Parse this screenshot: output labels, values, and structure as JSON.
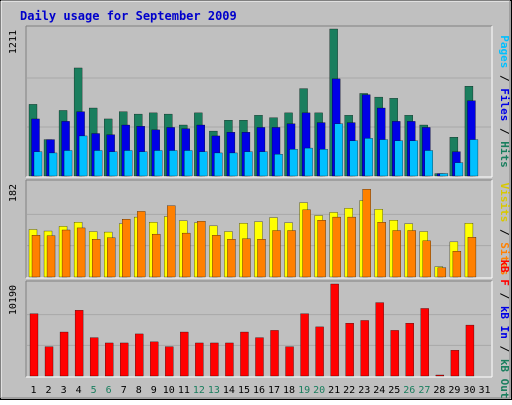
{
  "title": "Daily usage for September 2009",
  "colors": {
    "background": "#c0c0c0",
    "hits": "#1a7e5e",
    "files": "#0000e6",
    "pages": "#00c0ff",
    "visits": "#ffff00",
    "sites": "#ff8000",
    "kb_in": "#0000e6",
    "kb_out": "#1a7e5e",
    "kb_f": "#ff0000",
    "weekday_label": "#000000",
    "weekend_label": "#1a7e5e"
  },
  "side_labels": {
    "top": [
      {
        "text": "Pages",
        "color": "#00c0ff"
      },
      {
        "text": " / ",
        "color": "#000000"
      },
      {
        "text": "Files",
        "color": "#0000e6"
      },
      {
        "text": " / ",
        "color": "#000000"
      },
      {
        "text": "Hits",
        "color": "#1a7e5e"
      }
    ],
    "middle": [
      {
        "text": "Visits",
        "color": "#d8c800"
      },
      {
        "text": " / ",
        "color": "#000000"
      },
      {
        "text": "Sites",
        "color": "#ff8000"
      }
    ],
    "bottom": [
      {
        "text": "kB F",
        "color": "#ff0000"
      },
      {
        "text": " / ",
        "color": "#000000"
      },
      {
        "text": "kB In",
        "color": "#0000e6"
      },
      {
        "text": " / ",
        "color": "#000000"
      },
      {
        "text": "kB Out",
        "color": "#1a7e5e"
      }
    ]
  },
  "chart_data": [
    {
      "type": "bar",
      "panel": "top",
      "ymax_label": "1211",
      "ylim": [
        0,
        1211
      ],
      "categories": [
        "1",
        "2",
        "3",
        "4",
        "5",
        "6",
        "7",
        "8",
        "9",
        "10",
        "11",
        "12",
        "13",
        "14",
        "15",
        "16",
        "17",
        "18",
        "19",
        "20",
        "21",
        "22",
        "23",
        "24",
        "25",
        "26",
        "27",
        "28",
        "29",
        "30",
        "31"
      ],
      "weekend": [
        5,
        6,
        12,
        13,
        19,
        20,
        26,
        27
      ],
      "series": [
        {
          "name": "Hits",
          "color": "#1a7e5e",
          "values": [
            590,
            300,
            540,
            890,
            560,
            470,
            530,
            510,
            520,
            510,
            420,
            520,
            370,
            460,
            460,
            500,
            480,
            520,
            720,
            520,
            1211,
            500,
            680,
            650,
            640,
            500,
            420,
            20,
            320,
            740,
            0
          ]
        },
        {
          "name": "Files",
          "color": "#0000e6",
          "values": [
            470,
            300,
            450,
            530,
            350,
            340,
            420,
            410,
            380,
            400,
            390,
            420,
            330,
            360,
            360,
            400,
            400,
            430,
            520,
            440,
            800,
            440,
            670,
            560,
            450,
            450,
            400,
            20,
            200,
            620,
            0
          ]
        },
        {
          "name": "Pages",
          "color": "#00c0ff",
          "values": [
            200,
            190,
            210,
            330,
            210,
            200,
            210,
            200,
            210,
            210,
            210,
            200,
            190,
            190,
            200,
            200,
            180,
            220,
            230,
            220,
            430,
            290,
            310,
            300,
            290,
            290,
            210,
            20,
            110,
            300,
            0
          ]
        }
      ]
    },
    {
      "type": "bar",
      "panel": "middle",
      "ymax_label": "182",
      "ylim": [
        0,
        182
      ],
      "categories": [
        "1",
        "2",
        "3",
        "4",
        "5",
        "6",
        "7",
        "8",
        "9",
        "10",
        "11",
        "12",
        "13",
        "14",
        "15",
        "16",
        "17",
        "18",
        "19",
        "20",
        "21",
        "22",
        "23",
        "24",
        "25",
        "26",
        "27",
        "28",
        "29",
        "30",
        "31"
      ],
      "series": [
        {
          "name": "Visits",
          "color": "#ffff00",
          "values": [
            92,
            89,
            98,
            106,
            88,
            87,
            103,
            116,
            106,
            117,
            109,
            105,
            99,
            88,
            104,
            107,
            115,
            105,
            144,
            119,
            125,
            133,
            148,
            131,
            110,
            103,
            88,
            20,
            68,
            104,
            0
          ]
        },
        {
          "name": "Sites",
          "color": "#ff8000",
          "values": [
            81,
            80,
            91,
            95,
            73,
            76,
            112,
            127,
            83,
            138,
            85,
            108,
            81,
            73,
            74,
            73,
            90,
            90,
            130,
            110,
            116,
            116,
            170,
            106,
            90,
            90,
            70,
            18,
            50,
            77,
            0
          ]
        }
      ]
    },
    {
      "type": "bar",
      "panel": "bottom",
      "ymax_label": "10190",
      "ylim": [
        0,
        10190
      ],
      "categories": [
        "1",
        "2",
        "3",
        "4",
        "5",
        "6",
        "7",
        "8",
        "9",
        "10",
        "11",
        "12",
        "13",
        "14",
        "15",
        "16",
        "17",
        "18",
        "19",
        "20",
        "21",
        "22",
        "23",
        "24",
        "25",
        "26",
        "27",
        "28",
        "29",
        "30",
        "31"
      ],
      "series": [
        {
          "name": "kB F",
          "color": "#ff0000",
          "values": [
            6890,
            3240,
            4870,
            7280,
            4250,
            3660,
            3660,
            4660,
            3780,
            3250,
            4870,
            3660,
            3660,
            3660,
            4870,
            4250,
            5050,
            3240,
            6890,
            5440,
            10190,
            5850,
            6150,
            8130,
            5050,
            5850,
            7480,
            100,
            2850,
            5640,
            0
          ]
        }
      ]
    }
  ]
}
